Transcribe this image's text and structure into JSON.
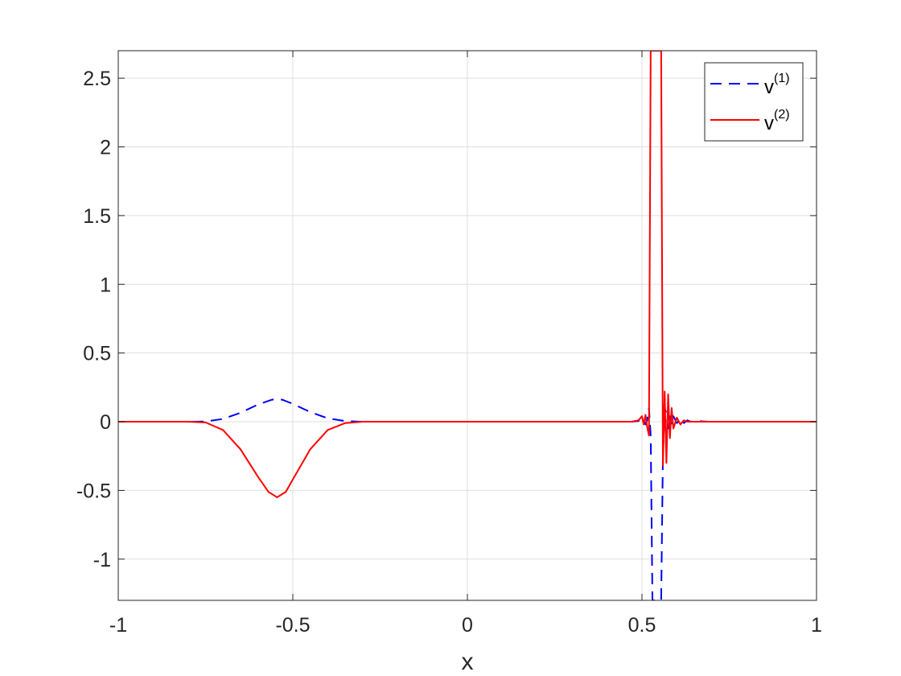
{
  "chart_data": {
    "type": "line",
    "xlabel": "x",
    "ylabel": "",
    "title": "",
    "xlim": [
      -1,
      1
    ],
    "ylim": [
      -1.3,
      2.7
    ],
    "xticks": [
      -1,
      -0.5,
      0,
      0.5,
      1
    ],
    "xtick_labels": [
      "-1",
      "-0.5",
      "0",
      "0.5",
      "1"
    ],
    "yticks": [
      -1,
      -0.5,
      0,
      0.5,
      1,
      1.5,
      2,
      2.5
    ],
    "ytick_labels": [
      "-1",
      "-0.5",
      "0",
      "0.5",
      "1",
      "1.5",
      "2",
      "2.5"
    ],
    "grid": true,
    "legend_position": "top-right",
    "series": [
      {
        "name": "v",
        "name_superscript": "(1)",
        "color": "#0000ff",
        "style": "dashed",
        "x": [
          -1,
          -0.8,
          -0.75,
          -0.7,
          -0.65,
          -0.6,
          -0.56,
          -0.545,
          -0.53,
          -0.5,
          -0.45,
          -0.4,
          -0.35,
          -0.3,
          0,
          0.47,
          0.49,
          0.5,
          0.505,
          0.51,
          0.515,
          0.52,
          0.525,
          0.53,
          0.535,
          0.54,
          0.545,
          0.55,
          0.555,
          0.56,
          0.565,
          0.57,
          0.575,
          0.58,
          0.585,
          0.59,
          0.6,
          0.61,
          0.62,
          0.63,
          0.64,
          0.66,
          0.69,
          1
        ],
        "y": [
          0,
          0,
          0.002,
          0.02,
          0.065,
          0.125,
          0.16,
          0.165,
          0.16,
          0.13,
          0.07,
          0.025,
          0.005,
          0,
          0,
          0,
          0.005,
          0.02,
          0.02,
          -0.02,
          0.01,
          0.1,
          -0.1,
          -1.3,
          -1.3,
          -1.3,
          -1.3,
          -1.3,
          -1.3,
          -0.25,
          0.1,
          0.06,
          -0.05,
          0.04,
          -0.02,
          0.04,
          -0.01,
          0.02,
          -0.01,
          0.01,
          0,
          0.005,
          0,
          0
        ]
      },
      {
        "name": "v",
        "name_superscript": "(2)",
        "color": "#ff0000",
        "style": "solid",
        "x": [
          -1,
          -0.8,
          -0.75,
          -0.7,
          -0.65,
          -0.6,
          -0.57,
          -0.545,
          -0.52,
          -0.5,
          -0.45,
          -0.4,
          -0.35,
          -0.3,
          0,
          0.47,
          0.49,
          0.5,
          0.505,
          0.51,
          0.515,
          0.52,
          0.525,
          0.53,
          0.535,
          0.54,
          0.545,
          0.55,
          0.555,
          0.56,
          0.565,
          0.57,
          0.575,
          0.58,
          0.585,
          0.59,
          0.6,
          0.61,
          0.62,
          0.63,
          0.64,
          0.66,
          0.69,
          1
        ],
        "y": [
          0,
          0,
          -0.005,
          -0.06,
          -0.2,
          -0.4,
          -0.51,
          -0.55,
          -0.51,
          -0.42,
          -0.2,
          -0.06,
          -0.01,
          0,
          0,
          0,
          0.01,
          0.04,
          -0.02,
          0.05,
          -0.04,
          -0.1,
          2.7,
          2.7,
          2.7,
          2.7,
          2.7,
          2.7,
          2.7,
          -0.32,
          0.22,
          -0.3,
          0.2,
          -0.12,
          0.1,
          -0.05,
          0.03,
          -0.02,
          0.01,
          0,
          0,
          0,
          0,
          0
        ]
      }
    ]
  }
}
